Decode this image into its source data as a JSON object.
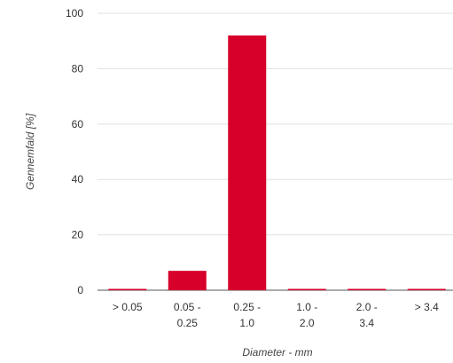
{
  "chart_data": {
    "type": "bar",
    "title": "",
    "xlabel": "Diameter - mm",
    "ylabel": "Gennemfald [%]",
    "ylim": [
      0,
      100
    ],
    "yticks": [
      0,
      20,
      40,
      60,
      80,
      100
    ],
    "grid": true,
    "legend": "none",
    "categories": [
      [
        "> 0.05"
      ],
      [
        "0.05 -",
        "0.25"
      ],
      [
        "0.25 -",
        "1.0"
      ],
      [
        "1.0 -",
        "2.0"
      ],
      [
        "2.0 -",
        "3.4"
      ],
      [
        "> 3.4"
      ]
    ],
    "series": [
      {
        "values": [
          0,
          7,
          92,
          0,
          0,
          0
        ]
      }
    ],
    "colors": {
      "bar": "#d6002a",
      "grid": "#e0e0e0",
      "axis": "#555555"
    }
  }
}
